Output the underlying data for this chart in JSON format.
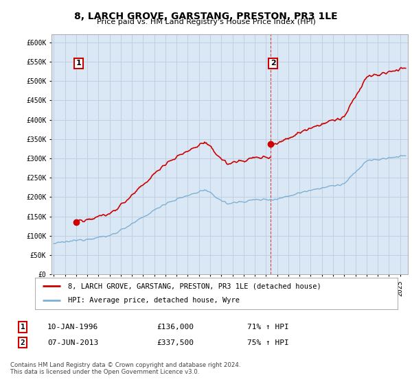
{
  "title": "8, LARCH GROVE, GARSTANG, PRESTON, PR3 1LE",
  "subtitle": "Price paid vs. HM Land Registry's House Price Index (HPI)",
  "ylim": [
    0,
    620000
  ],
  "yticks": [
    0,
    50000,
    100000,
    150000,
    200000,
    250000,
    300000,
    350000,
    400000,
    450000,
    500000,
    550000,
    600000
  ],
  "ytick_labels": [
    "£0",
    "£50K",
    "£100K",
    "£150K",
    "£200K",
    "£250K",
    "£300K",
    "£350K",
    "£400K",
    "£450K",
    "£500K",
    "£550K",
    "£600K"
  ],
  "sale1_year": 1996.027,
  "sale1_price": 136000,
  "sale1_label": "1",
  "sale2_year": 2013.435,
  "sale2_price": 337500,
  "sale2_label": "2",
  "hpi_line_color": "#7EB0D5",
  "price_line_color": "#CC0000",
  "marker_color": "#CC0000",
  "grid_color": "#BBCCDD",
  "bg_color": "#FFFFFF",
  "plot_bg_color": "#DAE8F5",
  "legend_label_price": "8, LARCH GROVE, GARSTANG, PRESTON, PR3 1LE (detached house)",
  "legend_label_hpi": "HPI: Average price, detached house, Wyre",
  "note1_label": "1",
  "note1_date": "10-JAN-1996",
  "note1_price": "£136,000",
  "note1_hpi": "71% ↑ HPI",
  "note2_label": "2",
  "note2_date": "07-JUN-2013",
  "note2_price": "£337,500",
  "note2_hpi": "75% ↑ HPI",
  "footer": "Contains HM Land Registry data © Crown copyright and database right 2024.\nThis data is licensed under the Open Government Licence v3.0.",
  "xlim_start": 1993.8,
  "xlim_end": 2025.7
}
